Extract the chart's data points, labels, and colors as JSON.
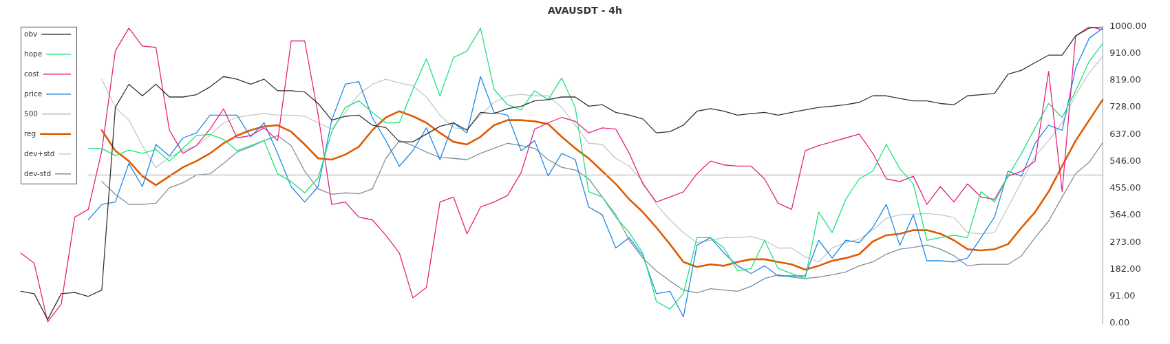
{
  "chart_data": {
    "type": "line",
    "title": "AVAUSDT - 4h",
    "categories": [
      null,
      null,
      null,
      null,
      null,
      null,
      null,
      null,
      null,
      null,
      null,
      null,
      null,
      null,
      null,
      null,
      null,
      null,
      null,
      null,
      null,
      null,
      null,
      null,
      null,
      null,
      null,
      null,
      null,
      null,
      null,
      null,
      null,
      null,
      null,
      null,
      null,
      null,
      null,
      null,
      null,
      null,
      null,
      null,
      null,
      null,
      null,
      null,
      null,
      null,
      null,
      null,
      null,
      null,
      null,
      null,
      null,
      null,
      null,
      null,
      null,
      null,
      null,
      null,
      null,
      null,
      null,
      null,
      null,
      null,
      null,
      null,
      null,
      null,
      null,
      null,
      null,
      null,
      null,
      null,
      null
    ],
    "ylim": [
      0,
      1000
    ],
    "yticks": [
      {
        "value": 0,
        "label": "0.00"
      },
      {
        "value": 91,
        "label": "91.00"
      },
      {
        "value": 182,
        "label": "182.00"
      },
      {
        "value": 273,
        "label": "273.00"
      },
      {
        "value": 364,
        "label": "364.00"
      },
      {
        "value": 455,
        "label": "455.00"
      },
      {
        "value": 546,
        "label": "546.00"
      },
      {
        "value": 637,
        "label": "637.00"
      },
      {
        "value": 728,
        "label": "728.00"
      },
      {
        "value": 819,
        "label": "819.00"
      },
      {
        "value": 910,
        "label": "910.00"
      },
      {
        "value": 1000,
        "label": "1000.00"
      }
    ],
    "legend": "top left",
    "marker": "none",
    "series": [
      {
        "name": "obv",
        "color": "#333333",
        "values": [
          108,
          100,
          13,
          100,
          104,
          91,
          112,
          728,
          806,
          767,
          806,
          763,
          763,
          771,
          797,
          832,
          823,
          806,
          823,
          784,
          784,
          780,
          741,
          685,
          698,
          702,
          668,
          660,
          612,
          612,
          638,
          664,
          676,
          651,
          711,
          707,
          724,
          732,
          750,
          754,
          763,
          763,
          732,
          737,
          711,
          702,
          689,
          642,
          646,
          668,
          715,
          724,
          715,
          702,
          707,
          711,
          702,
          711,
          720,
          728,
          732,
          737,
          745,
          767,
          767,
          758,
          750,
          750,
          741,
          737,
          767,
          771,
          775,
          840,
          853,
          879,
          904,
          904,
          969,
          995,
          1000
        ]
      },
      {
        "name": "hope",
        "color": "#1de27a",
        "values": [
          null,
          null,
          null,
          null,
          null,
          590,
          590,
          565,
          584,
          573,
          586,
          547,
          590,
          633,
          637,
          620,
          582,
          599,
          616,
          504,
          478,
          440,
          491,
          646,
          728,
          750,
          711,
          676,
          676,
          789,
          892,
          767,
          896,
          918,
          995,
          789,
          737,
          720,
          784,
          754,
          827,
          728,
          444,
          426,
          358,
          306,
          237,
          74,
          48,
          100,
          289,
          289,
          254,
          177,
          185,
          280,
          185,
          168,
          151,
          375,
          306,
          418,
          487,
          513,
          603,
          521,
          470,
          280,
          289,
          297,
          289,
          444,
          409,
          496,
          573,
          659,
          741,
          694,
          784,
          883,
          943
        ]
      },
      {
        "name": "cost",
        "color": "#e8207f",
        "values": [
          237,
          203,
          5,
          65,
          358,
          384,
          582,
          918,
          995,
          935,
          930,
          651,
          573,
          599,
          655,
          723,
          625,
          633,
          659,
          616,
          952,
          952,
          702,
          401,
          409,
          358,
          349,
          297,
          237,
          86,
          121,
          409,
          426,
          302,
          392,
          409,
          431,
          508,
          655,
          676,
          694,
          681,
          642,
          659,
          655,
          573,
          470,
          409,
          426,
          443,
          504,
          547,
          534,
          530,
          530,
          487,
          405,
          384,
          582,
          599,
          612,
          625,
          638,
          573,
          487,
          478,
          496,
          401,
          461,
          409,
          470,
          426,
          418,
          496,
          513,
          547,
          849,
          444,
          969,
          1000,
          990
        ]
      },
      {
        "name": "price",
        "color": "#1e88e5",
        "values": [
          null,
          null,
          null,
          null,
          null,
          349,
          401,
          409,
          539,
          461,
          603,
          564,
          625,
          642,
          702,
          702,
          702,
          629,
          676,
          573,
          461,
          409,
          461,
          685,
          806,
          815,
          694,
          616,
          530,
          582,
          659,
          552,
          676,
          642,
          832,
          711,
          702,
          582,
          616,
          497,
          573,
          552,
          392,
          366,
          254,
          289,
          228,
          100,
          108,
          22,
          263,
          289,
          237,
          194,
          168,
          194,
          160,
          160,
          160,
          280,
          220,
          280,
          272,
          323,
          401,
          263,
          366,
          211,
          211,
          207,
          220,
          289,
          358,
          513,
          496,
          607,
          668,
          651,
          861,
          961,
          995
        ]
      },
      {
        "name": "500",
        "color": "#bbbbbb",
        "values": [
          null,
          null,
          null,
          null,
          null,
          500,
          500,
          500,
          500,
          500,
          500,
          500,
          500,
          500,
          500,
          500,
          500,
          500,
          500,
          500,
          500,
          500,
          500,
          500,
          500,
          500,
          500,
          500,
          500,
          500,
          500,
          500,
          500,
          500,
          500,
          500,
          500,
          500,
          500,
          500,
          500,
          500,
          500,
          500,
          500,
          500,
          500,
          500,
          500,
          500,
          500,
          500,
          500,
          500,
          500,
          500,
          500,
          500,
          500,
          500,
          500,
          500,
          500,
          500,
          500,
          500,
          500,
          500,
          500,
          500,
          500,
          500,
          500,
          500,
          500,
          500,
          500,
          500,
          500,
          500,
          500
        ]
      },
      {
        "name": "reg",
        "color": "#e05a00",
        "values": [
          null,
          null,
          null,
          null,
          null,
          null,
          651,
          582,
          547,
          496,
          466,
          496,
          526,
          547,
          573,
          607,
          633,
          651,
          664,
          668,
          646,
          603,
          556,
          552,
          569,
          595,
          651,
          694,
          715,
          698,
          676,
          642,
          612,
          603,
          629,
          668,
          685,
          685,
          681,
          672,
          629,
          590,
          556,
          513,
          470,
          418,
          375,
          323,
          267,
          207,
          190,
          199,
          194,
          207,
          216,
          216,
          207,
          199,
          181,
          194,
          211,
          220,
          233,
          276,
          297,
          302,
          314,
          314,
          302,
          280,
          250,
          246,
          250,
          267,
          323,
          375,
          444,
          530,
          616,
          685,
          754
        ]
      },
      {
        "name": "dev+std",
        "color": "#c4c8cc",
        "values": [
          null,
          null,
          null,
          null,
          null,
          null,
          823,
          728,
          685,
          599,
          525,
          560,
          582,
          599,
          633,
          676,
          694,
          702,
          707,
          702,
          702,
          698,
          676,
          655,
          711,
          772,
          806,
          823,
          810,
          801,
          763,
          702,
          659,
          655,
          702,
          745,
          767,
          772,
          767,
          767,
          728,
          668,
          607,
          603,
          556,
          530,
          478,
          401,
          349,
          306,
          272,
          280,
          289,
          289,
          293,
          280,
          254,
          254,
          224,
          207,
          254,
          272,
          284,
          315,
          354,
          366,
          368,
          370,
          366,
          357,
          306,
          302,
          306,
          392,
          478,
          564,
          616,
          676,
          771,
          844,
          900
        ]
      },
      {
        "name": "dev-std",
        "color": "#7e909c",
        "values": [
          null,
          null,
          null,
          null,
          null,
          null,
          478,
          435,
          401,
          401,
          405,
          457,
          474,
          500,
          504,
          539,
          577,
          595,
          616,
          633,
          599,
          513,
          453,
          435,
          440,
          437,
          453,
          556,
          616,
          599,
          577,
          560,
          556,
          552,
          573,
          590,
          607,
          599,
          590,
          552,
          526,
          517,
          487,
          426,
          366,
          280,
          220,
          177,
          143,
          112,
          103,
          117,
          112,
          108,
          125,
          151,
          164,
          156,
          151,
          156,
          164,
          173,
          194,
          207,
          233,
          250,
          256,
          264,
          250,
          228,
          194,
          199,
          199,
          199,
          228,
          289,
          345,
          426,
          505,
          543,
          609
        ]
      }
    ]
  }
}
